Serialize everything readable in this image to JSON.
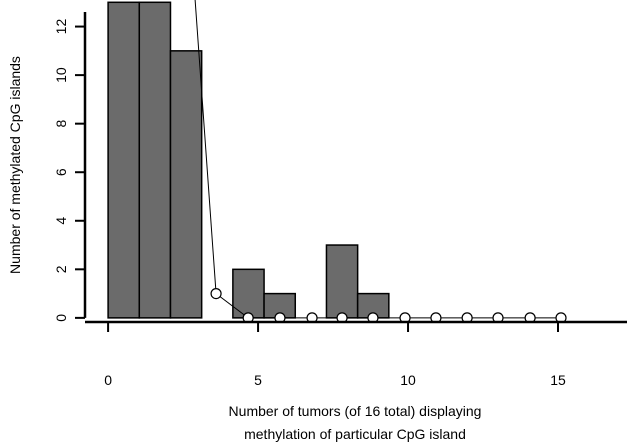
{
  "chart_data": {
    "type": "histogram",
    "xlabel": [
      "Number of tumors (of 16 total) displaying",
      "methylation of particular CpG island"
    ],
    "ylabel": "Number of methylated CpG islands",
    "bins": [
      0,
      1.04,
      2.08,
      3.12,
      4.16,
      5.2,
      6.24,
      7.28,
      8.32,
      9.36
    ],
    "counts": [
      13,
      13,
      11,
      0,
      2,
      1,
      0,
      3,
      1
    ],
    "color": "#6b6b6b",
    "overlay": {
      "type": "line",
      "color": "#000000",
      "x": [
        2.56,
        3.6,
        4.67,
        5.73,
        6.8,
        7.8,
        8.83,
        9.9,
        10.93,
        11.97,
        13,
        14.07,
        15.1
      ],
      "values": [
        19,
        1,
        0,
        0,
        0,
        0,
        0,
        0,
        0,
        0,
        0,
        0,
        0
      ]
    },
    "xlim": [
      -0.77,
      17.3
    ],
    "ylim": [
      -0.17,
      12.6
    ],
    "xticks": [
      0,
      5,
      10,
      15
    ],
    "yticks": [
      0,
      2,
      4,
      6,
      8,
      10,
      12
    ]
  }
}
